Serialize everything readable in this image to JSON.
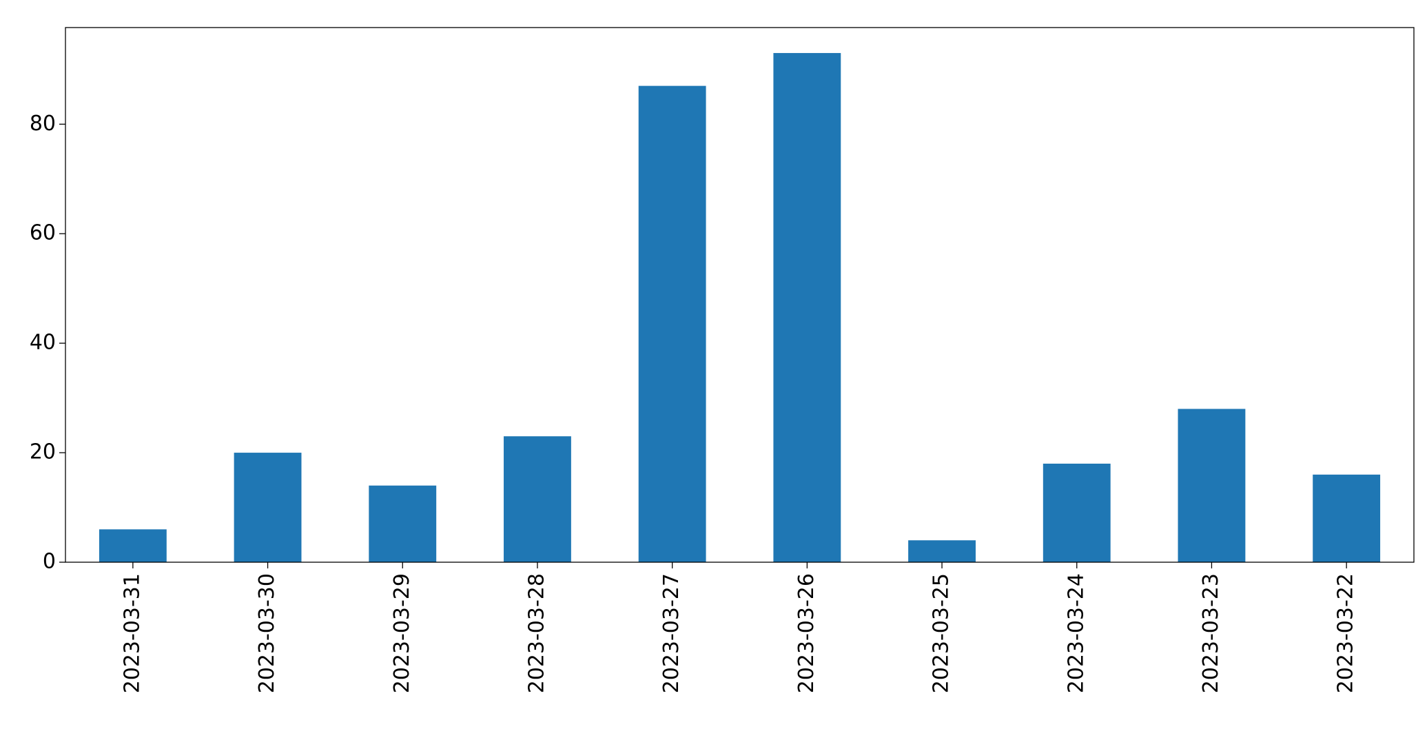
{
  "chart_data": {
    "type": "bar",
    "categories": [
      "2023-03-31",
      "2023-03-30",
      "2023-03-29",
      "2023-03-28",
      "2023-03-27",
      "2023-03-26",
      "2023-03-25",
      "2023-03-24",
      "2023-03-23",
      "2023-03-22"
    ],
    "values": [
      6,
      20,
      14,
      23,
      87,
      93,
      4,
      18,
      28,
      16
    ],
    "color": "#1f77b4",
    "ylim": [
      0,
      97.65
    ],
    "yticks": [
      0,
      20,
      40,
      60,
      80
    ],
    "grid": false
  }
}
